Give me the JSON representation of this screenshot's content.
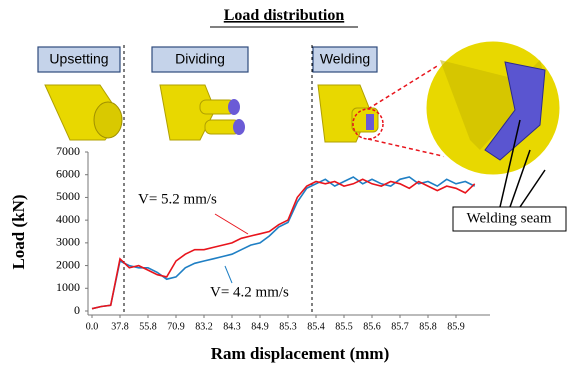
{
  "chart_data": {
    "type": "line",
    "title": "Load distribution",
    "xlabel": "Ram displacement (mm)",
    "ylabel": "Load (kN)",
    "stages": [
      "Upsetting",
      "Dividing",
      "Welding"
    ],
    "callout": "Welding seam",
    "categories": [
      "0.0",
      null,
      null,
      "37.8",
      null,
      null,
      "55.8",
      null,
      null,
      "70.9",
      null,
      null,
      "83.2",
      null,
      null,
      "84.3",
      null,
      null,
      "84.9",
      null,
      null,
      "85.3",
      null,
      null,
      "85.4",
      null,
      null,
      "85.5",
      null,
      null,
      "85.6",
      null,
      null,
      "85.7",
      null,
      null,
      "85.8",
      null,
      null,
      "85.9",
      null,
      null
    ],
    "series": [
      {
        "name": "V= 5.2 mm/s",
        "color": "#e8141c",
        "values": [
          100,
          200,
          250,
          2300,
          1900,
          2000,
          1800,
          1600,
          1500,
          2200,
          2500,
          2700,
          2700,
          2800,
          2900,
          3000,
          3200,
          3300,
          3400,
          3500,
          3800,
          4000,
          5000,
          5500,
          5700,
          5600,
          5700,
          5500,
          5600,
          5800,
          5600,
          5500,
          5700,
          5600,
          5400,
          5700,
          5500,
          5300,
          5500,
          5400,
          5200,
          5600
        ]
      },
      {
        "name": "V= 4.2 mm/s",
        "color": "#1f7fc4",
        "values": [
          100,
          200,
          250,
          2200,
          2000,
          1900,
          1900,
          1700,
          1400,
          1500,
          1900,
          2100,
          2200,
          2300,
          2400,
          2500,
          2700,
          2900,
          3000,
          3300,
          3700,
          3900,
          4800,
          5400,
          5600,
          5800,
          5500,
          5700,
          5900,
          5600,
          5800,
          5600,
          5500,
          5800,
          5900,
          5600,
          5700,
          5500,
          5800,
          5600,
          5700,
          5500
        ]
      }
    ],
    "ylim": [
      0,
      7000
    ],
    "yticks": [
      0,
      1000,
      2000,
      3000,
      4000,
      5000,
      6000,
      7000
    ]
  }
}
